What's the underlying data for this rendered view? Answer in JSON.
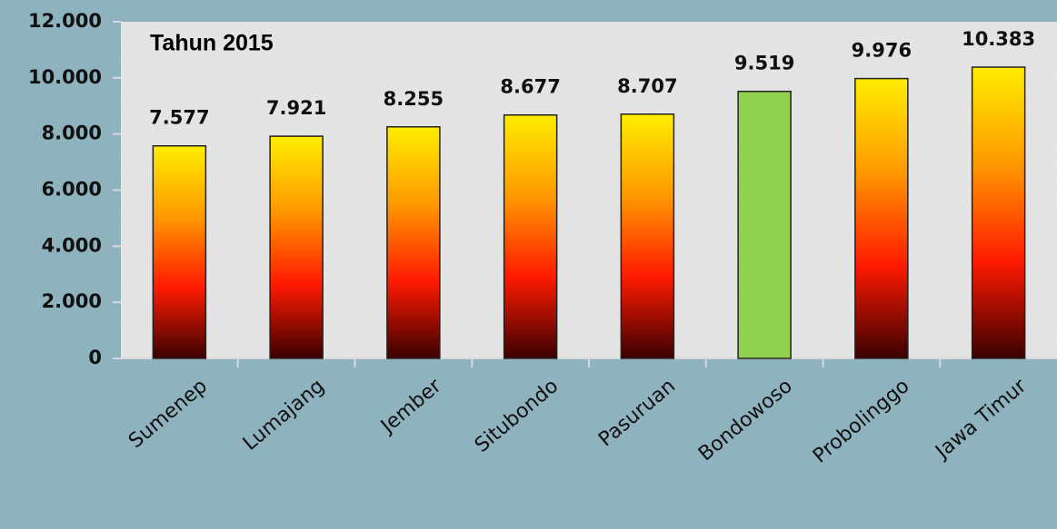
{
  "chart_data": {
    "type": "bar",
    "annotation": "Tahun 2015",
    "categories": [
      "Sumenep",
      "Lumajang",
      "Jember",
      "Situbondo",
      "Pasuruan",
      "Bondowoso",
      "Probolinggo",
      "Jawa Timur"
    ],
    "values": [
      7577,
      7921,
      8255,
      8677,
      8707,
      9519,
      9976,
      10383
    ],
    "value_labels": [
      "7.577",
      "7.921",
      "8.255",
      "8.677",
      "8.707",
      "9.519",
      "9.976",
      "10.383"
    ],
    "colors": [
      [
        "#ffee00",
        "#ff9900",
        "#ff1a00",
        "#3a0000"
      ],
      [
        "#ffee00",
        "#ff9900",
        "#ff1a00",
        "#3a0000"
      ],
      [
        "#ffee00",
        "#ff9900",
        "#ff1a00",
        "#3a0000"
      ],
      [
        "#ffee00",
        "#ff9900",
        "#ff1a00",
        "#3a0000"
      ],
      [
        "#ffee00",
        "#ff9900",
        "#ff1a00",
        "#3a0000"
      ],
      [
        "#92d050"
      ],
      [
        "#ffee00",
        "#ff9900",
        "#ff1a00",
        "#3a0000"
      ],
      [
        "#ffee00",
        "#ff9900",
        "#ff1a00",
        "#3a0000"
      ]
    ],
    "ylim": [
      0,
      12000
    ],
    "yticks": [
      0,
      {
        "value": 2000,
        "label": "2.000"
      },
      {
        "value": 4000,
        "label": "4.000"
      },
      {
        "value": 6000,
        "label": "6.000"
      },
      {
        "value": 8000,
        "label": "8.000"
      },
      {
        "value": 10000,
        "label": "10.000"
      },
      {
        "value": 12000,
        "label": "12.000"
      }
    ],
    "grid": false
  }
}
